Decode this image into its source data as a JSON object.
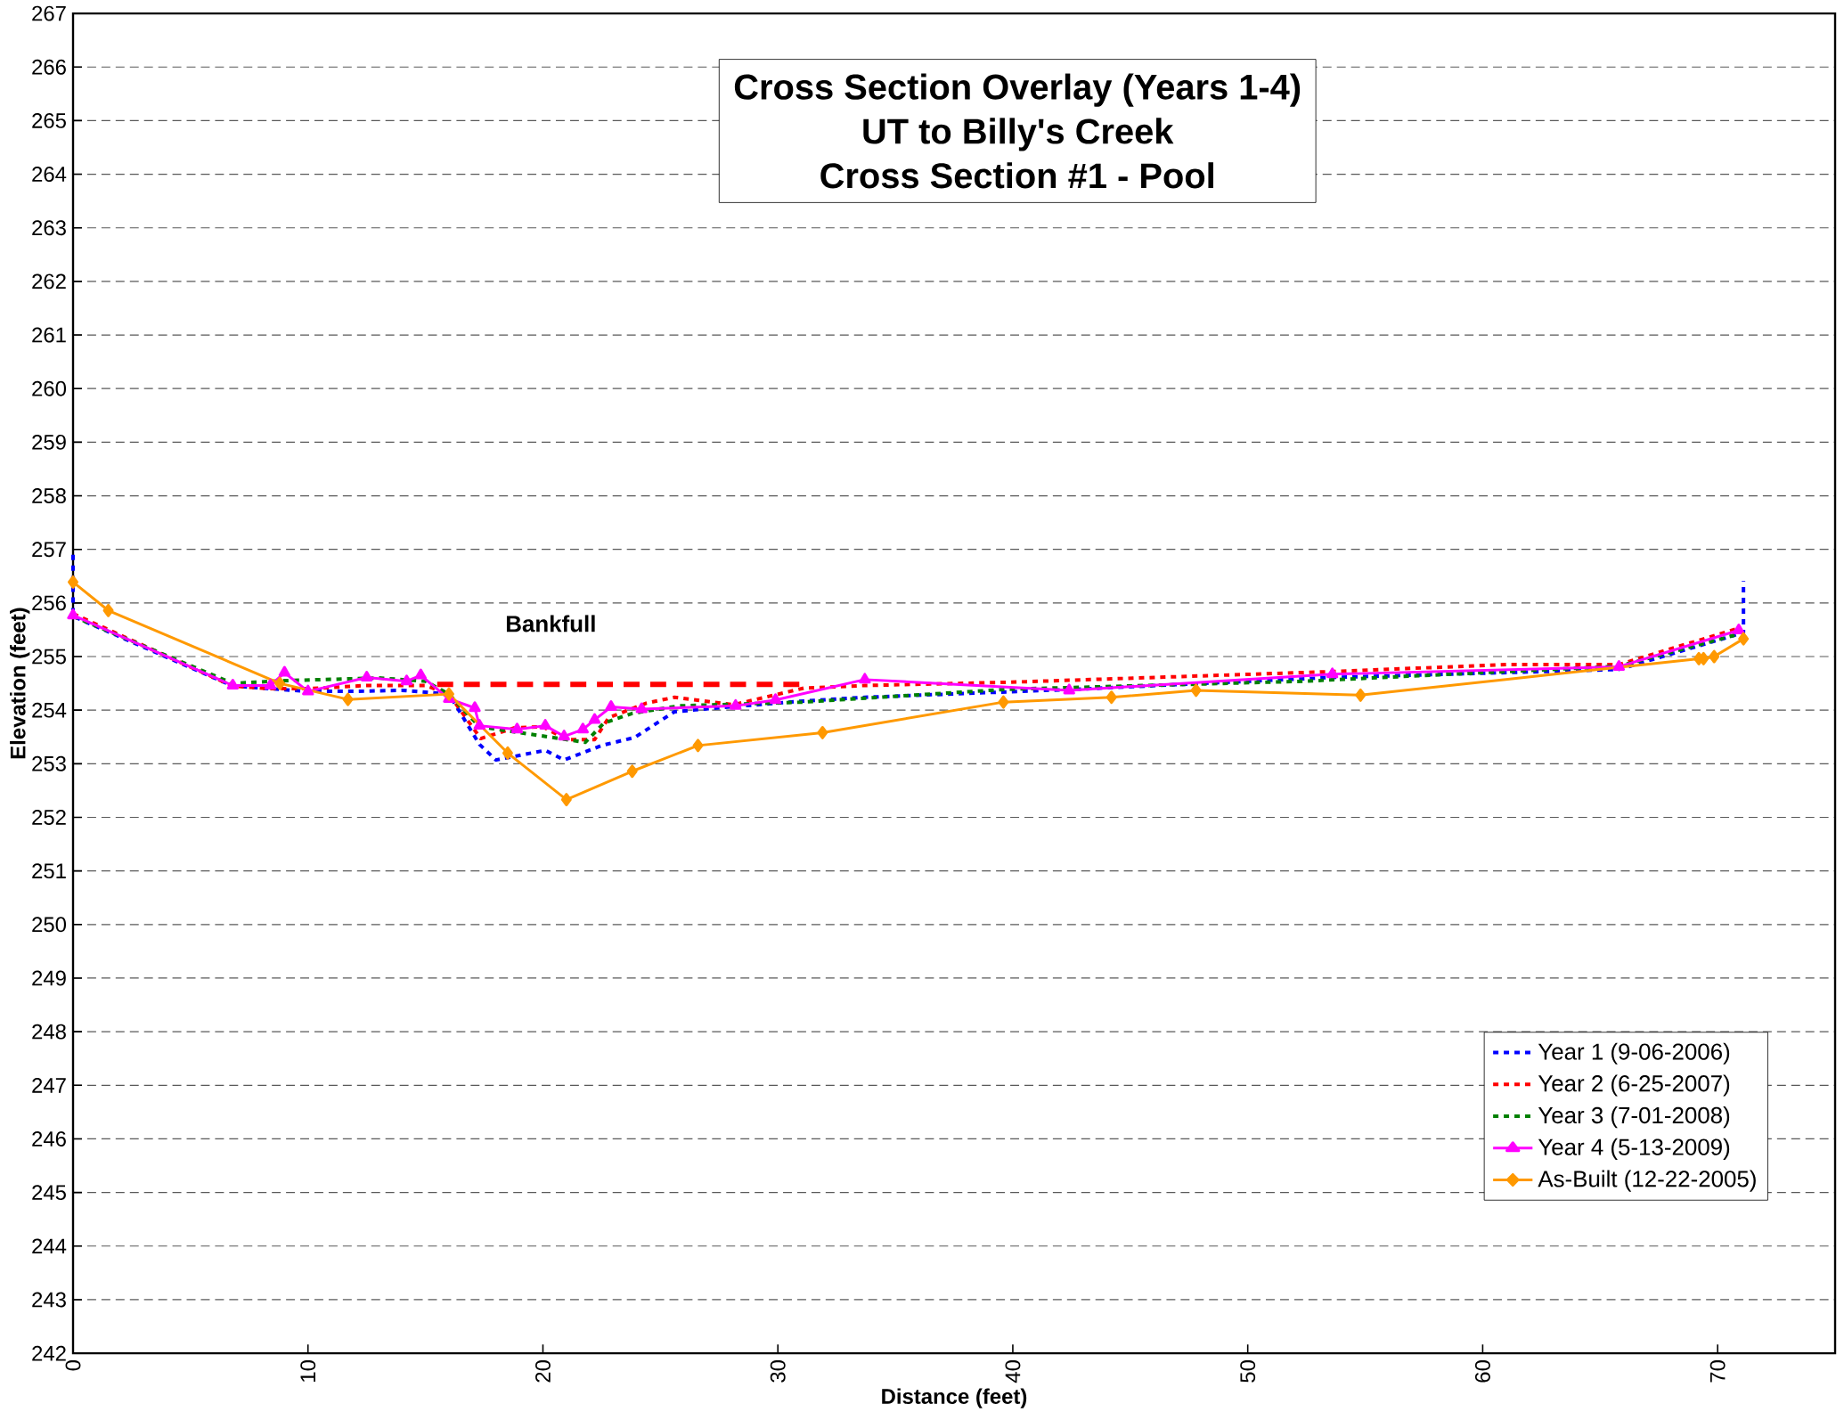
{
  "chart_data": {
    "type": "line",
    "title": "Cross Section Overlay (Years 1-4)",
    "subtitle": "UT to Billy's Creek",
    "xlabel": "Distance (feet)",
    "ylabel": "Elevation (feet)",
    "annotations": [
      "Cross Section #1 - Pool",
      "Bankfull"
    ],
    "xlim": [
      0,
      75
    ],
    "xticks": [
      0,
      10,
      20,
      30,
      40,
      50,
      60,
      70
    ],
    "ylim": [
      242,
      267
    ],
    "yticks": [
      242,
      243,
      244,
      245,
      246,
      247,
      248,
      249,
      250,
      251,
      252,
      253,
      254,
      255,
      256,
      257,
      258,
      259,
      260,
      261,
      262,
      263,
      264,
      265,
      266,
      267
    ],
    "grid": "y",
    "legend": "bottom right",
    "series": [
      {
        "name": "Year 1 (9-06-2006)",
        "color": "#0000ff",
        "line_style": "dotted",
        "marker": "none",
        "x": [
          0,
          0,
          6.8,
          10,
          12,
          14,
          16,
          17.3,
          18.0,
          20.1,
          20.9,
          22.5,
          23.9,
          25.6,
          27.4,
          31.1,
          33.7,
          42.7,
          53.6,
          65.8,
          70.9,
          71.1,
          71.1
        ],
        "values": [
          256.9,
          255.75,
          254.45,
          254.35,
          254.35,
          254.37,
          254.3,
          253.36,
          253.07,
          253.25,
          253.07,
          253.34,
          253.49,
          253.97,
          254.04,
          254.17,
          254.24,
          254.39,
          254.61,
          254.76,
          255.42,
          255.45,
          256.41
        ]
      },
      {
        "name": "Year 2 (6-25-2007)",
        "color": "#ff0000",
        "line_style": "dotted",
        "marker": "none",
        "x": [
          0,
          6.8,
          8.4,
          10,
          12.5,
          15,
          16,
          17.35,
          18.8,
          20.0,
          21.0,
          22.2,
          22.8,
          24.4,
          25.6,
          28.1,
          31.1,
          33.7,
          39.8,
          53.6,
          61.0,
          65.8,
          70.9
        ],
        "values": [
          255.8,
          254.45,
          254.4,
          254.4,
          254.46,
          254.46,
          254.3,
          253.47,
          253.67,
          253.69,
          253.45,
          253.45,
          253.86,
          254.13,
          254.24,
          254.1,
          254.41,
          254.46,
          254.52,
          254.72,
          254.85,
          254.85,
          255.53
        ]
      },
      {
        "name": "Year 3 (7-01-2008)",
        "color": "#008000",
        "line_style": "dotted",
        "marker": "none",
        "x": [
          0,
          6.8,
          9,
          13,
          15,
          16,
          17.3,
          19.8,
          21.8,
          22.6,
          23.8,
          25.8,
          31.1,
          39.8,
          52.4,
          65.8,
          70.9
        ],
        "values": [
          255.75,
          254.5,
          254.55,
          254.6,
          254.54,
          254.3,
          253.69,
          253.53,
          253.4,
          253.76,
          253.94,
          254.08,
          254.15,
          254.39,
          254.54,
          254.82,
          255.42
        ]
      },
      {
        "name": "Year 4 (5-13-2009)",
        "color": "#ff00ff",
        "line_style": "solid",
        "marker": "triangle",
        "x": [
          0,
          6.8,
          8.4,
          9.0,
          10.0,
          12.5,
          14.2,
          14.8,
          16.0,
          17.1,
          17.3,
          18.9,
          20.1,
          20.9,
          21.7,
          22.2,
          22.9,
          24.2,
          28.2,
          29.9,
          33.7,
          42.4,
          53.6,
          65.8,
          70.9
        ],
        "values": [
          255.77,
          254.46,
          254.46,
          254.7,
          254.35,
          254.61,
          254.54,
          254.65,
          254.21,
          254.04,
          253.71,
          253.64,
          253.71,
          253.51,
          253.64,
          253.82,
          254.06,
          254.02,
          254.08,
          254.19,
          254.57,
          254.37,
          254.67,
          254.81,
          255.49
        ]
      },
      {
        "name": "As-Built (12-22-2005)",
        "color": "#ff9900",
        "line_style": "solid",
        "marker": "diamond",
        "x": [
          0,
          1.5,
          8.8,
          11.7,
          16.0,
          18.5,
          21.0,
          23.8,
          26.6,
          31.9,
          39.6,
          44.2,
          47.8,
          54.8,
          69.2,
          69.4,
          69.85,
          71.1
        ],
        "values": [
          256.39,
          255.86,
          254.5,
          254.2,
          254.3,
          253.2,
          252.33,
          252.86,
          253.34,
          253.58,
          254.15,
          254.24,
          254.37,
          254.28,
          254.96,
          254.96,
          255.0,
          255.33
        ]
      },
      {
        "color": "#ff0000",
        "line_style": "dashed",
        "marker": "none",
        "x": [
          15.5,
          31.1
        ],
        "values": [
          254.48,
          254.48
        ]
      }
    ]
  }
}
